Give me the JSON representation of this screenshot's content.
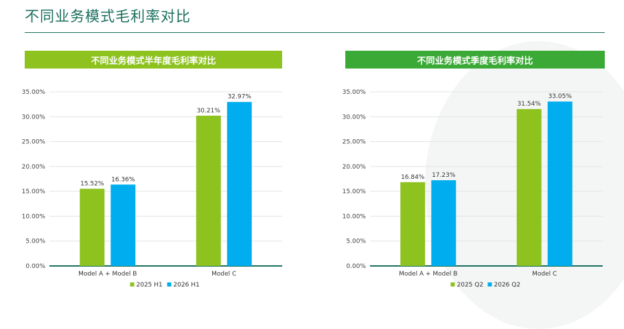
{
  "page": {
    "title": "不同业务模式毛利率对比"
  },
  "colors": {
    "accent": "#1a6f5d",
    "series1": "#8dc21f",
    "series2": "#00aeef",
    "header_left": "#8dc21f",
    "header_right": "#3aa935"
  },
  "chart_data": [
    {
      "type": "bar",
      "title": "不同业务模式半年度毛利率对比",
      "categories": [
        "Model A + Model B",
        "Model C"
      ],
      "series": [
        {
          "name": "2025 H1",
          "values": [
            15.52,
            30.21
          ],
          "labels": [
            "15.52%",
            "30.21%"
          ]
        },
        {
          "name": "2026 H1",
          "values": [
            16.36,
            32.97
          ],
          "labels": [
            "16.36%",
            "32.97%"
          ]
        }
      ],
      "ylim": [
        0,
        35
      ],
      "yticks": [
        "0.00%",
        "5.00%",
        "10.00%",
        "15.00%",
        "20.00%",
        "25.00%",
        "30.00%",
        "35.00%"
      ],
      "grid": true,
      "legend": "bottom"
    },
    {
      "type": "bar",
      "title": "不同业务模式季度毛利率对比",
      "categories": [
        "Model A + Model B",
        "Model C"
      ],
      "series": [
        {
          "name": "2025 Q2",
          "values": [
            16.84,
            31.54
          ],
          "labels": [
            "16.84%",
            "31.54%"
          ]
        },
        {
          "name": "2026 Q2",
          "values": [
            17.23,
            33.05
          ],
          "labels": [
            "17.23%",
            "33.05%"
          ]
        }
      ],
      "ylim": [
        0,
        35
      ],
      "yticks": [
        "0.00%",
        "5.00%",
        "10.00%",
        "15.00%",
        "20.00%",
        "25.00%",
        "30.00%",
        "35.00%"
      ],
      "grid": true,
      "legend": "bottom"
    }
  ]
}
